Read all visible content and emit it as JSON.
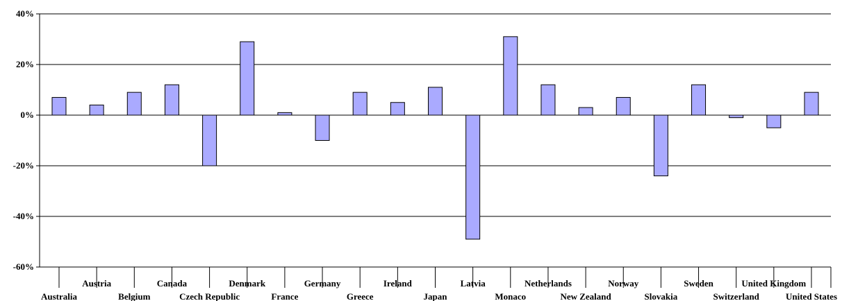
{
  "chart_data": {
    "type": "bar",
    "title": "",
    "xlabel": "",
    "ylabel": "",
    "categories": [
      "Australia",
      "Austria",
      "Belgium",
      "Canada",
      "Czech Republic",
      "Denmark",
      "France",
      "Germany",
      "Greece",
      "Ireland",
      "Japan",
      "Latvia",
      "Monaco",
      "Netherlands",
      "New Zealand",
      "Norway",
      "Slovakia",
      "Sweden",
      "Switzerland",
      "United Kingdom",
      "United States"
    ],
    "values": [
      7,
      4,
      9,
      12,
      -20,
      29,
      1,
      -10,
      9,
      5,
      11,
      -49,
      31,
      12,
      3,
      7,
      -24,
      12,
      -1,
      -5,
      9
    ],
    "ylim": [
      -60,
      40
    ],
    "yticks": [
      40,
      20,
      0,
      -20,
      -40,
      -60
    ],
    "ytick_labels": [
      "40%",
      "20%",
      "0%",
      "-20%",
      "-40%",
      "-60%"
    ],
    "grid": true,
    "colors": {
      "bar_fill": "#aaaaff",
      "bar_stroke": "#000000"
    }
  }
}
